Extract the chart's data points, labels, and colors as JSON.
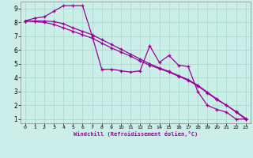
{
  "xlabel": "Windchill (Refroidissement éolien,°C)",
  "background_color": "#cceee8",
  "grid_color": "#aaddcc",
  "line_color": "#990099",
  "xlim": [
    -0.5,
    23.5
  ],
  "ylim": [
    0.7,
    9.5
  ],
  "xticks": [
    0,
    1,
    2,
    3,
    4,
    5,
    6,
    7,
    8,
    9,
    10,
    11,
    12,
    13,
    14,
    15,
    16,
    17,
    18,
    19,
    20,
    21,
    22,
    23
  ],
  "yticks": [
    1,
    2,
    3,
    4,
    5,
    6,
    7,
    8,
    9
  ],
  "series1_x": [
    0,
    1,
    2,
    3,
    4,
    5,
    6,
    7,
    8,
    9,
    10,
    11,
    12,
    13,
    14,
    15,
    16,
    17,
    18,
    19,
    20,
    21,
    22,
    23
  ],
  "series1_y": [
    8.1,
    8.3,
    8.4,
    8.8,
    9.2,
    9.2,
    9.2,
    7.0,
    4.6,
    4.6,
    4.5,
    4.4,
    4.5,
    6.3,
    5.1,
    5.6,
    4.9,
    4.8,
    3.0,
    2.0,
    1.7,
    1.5,
    1.0,
    1.0
  ],
  "series2_x": [
    0,
    1,
    2,
    3,
    4,
    5,
    6,
    7,
    8,
    9,
    10,
    11,
    12,
    13,
    14,
    15,
    16,
    17,
    18,
    19,
    20,
    21,
    22,
    23
  ],
  "series2_y": [
    8.1,
    8.05,
    8.0,
    7.85,
    7.6,
    7.35,
    7.1,
    6.85,
    6.5,
    6.15,
    5.85,
    5.55,
    5.2,
    4.9,
    4.65,
    4.4,
    4.1,
    3.8,
    3.4,
    2.9,
    2.4,
    2.0,
    1.5,
    1.0
  ],
  "series3_x": [
    0,
    1,
    2,
    3,
    4,
    5,
    6,
    7,
    8,
    9,
    10,
    11,
    12,
    13,
    14,
    15,
    16,
    17,
    18,
    19,
    20,
    21,
    22,
    23
  ],
  "series3_y": [
    8.1,
    8.1,
    8.1,
    8.05,
    7.9,
    7.6,
    7.35,
    7.1,
    6.75,
    6.4,
    6.05,
    5.7,
    5.35,
    5.0,
    4.7,
    4.45,
    4.15,
    3.85,
    3.45,
    2.95,
    2.45,
    2.0,
    1.55,
    1.05
  ]
}
